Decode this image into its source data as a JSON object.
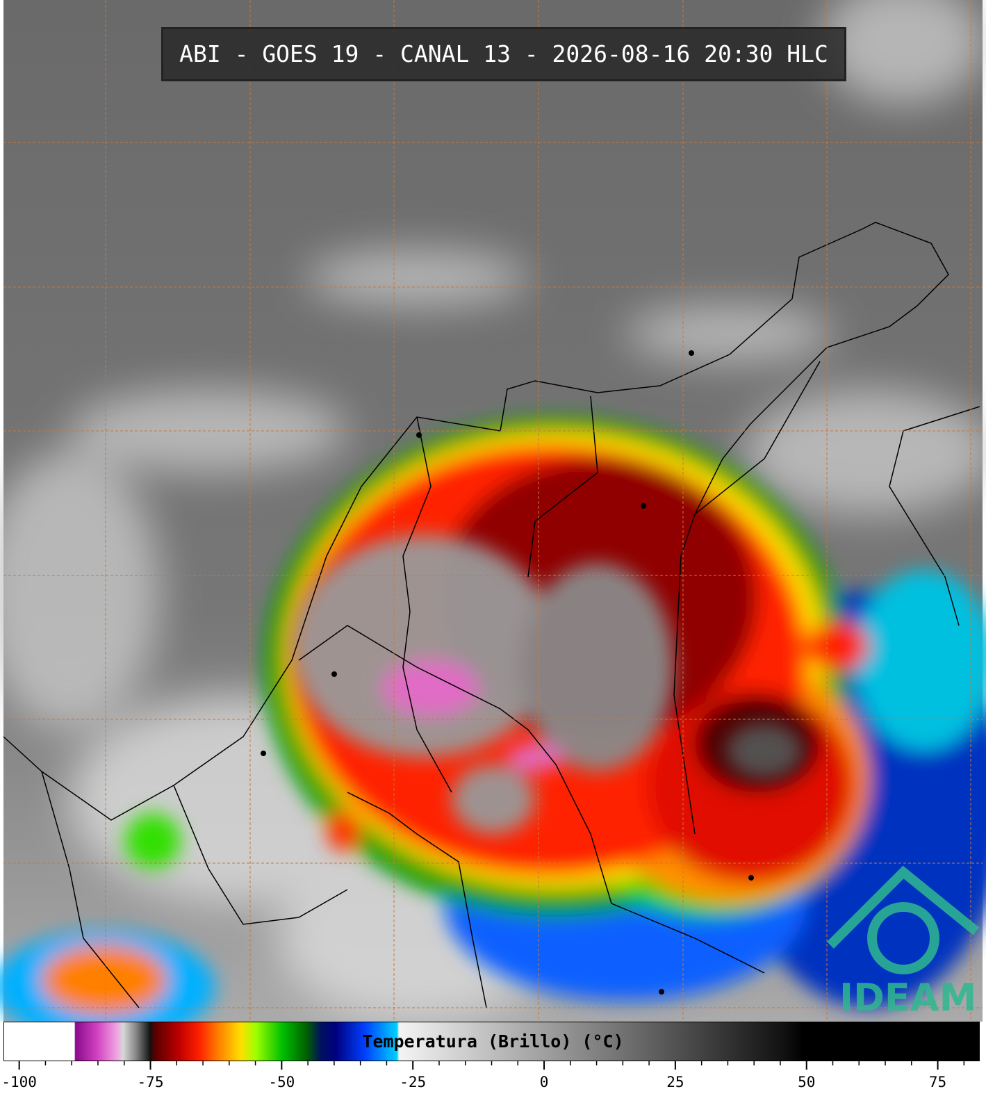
{
  "title": "ABI - GOES 19 - CANAL 13 - 2026-08-16 20:30 HLC",
  "colorbar": {
    "label": "Temperatura (Brillo) (°C)",
    "range": [
      -103,
      83
    ],
    "ticks": [
      -100,
      -75,
      -50,
      -25,
      0,
      25,
      50,
      75
    ],
    "minor_ticks": [
      -95,
      -90,
      -85,
      -80,
      -70,
      -65,
      -60,
      -55,
      -45,
      -40,
      -35,
      -30,
      -20,
      -15,
      -10,
      -5,
      5,
      10,
      15,
      20,
      30,
      35,
      40,
      45,
      55,
      60,
      65,
      70,
      80
    ]
  },
  "logo": "IDEAM"
}
